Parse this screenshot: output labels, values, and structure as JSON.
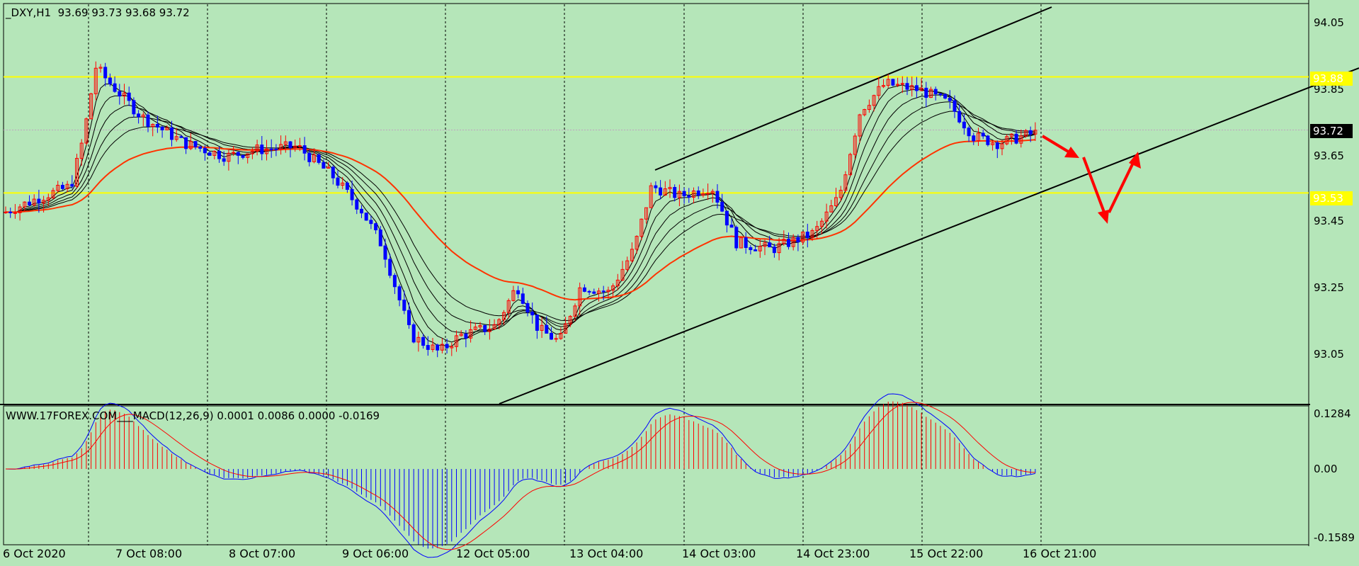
{
  "main_chart": {
    "symbol_info": "_DXY,H1",
    "ohlc": "93.69 93.73 93.68 93.72",
    "price_ticks": [
      "94.05",
      "93.85",
      "93.65",
      "93.45",
      "93.25",
      "93.05"
    ],
    "current_price": "93.72",
    "resistance_label": "93.88",
    "support_label": "93.53",
    "colors": {
      "background": "#b5e6b9",
      "level_line": "#ffff00",
      "bull_candle": "#ff0000",
      "bear_candle": "#0000ff",
      "slow_ma": "#ff3300",
      "channel": "#000000",
      "arrow": "#ff0000"
    }
  },
  "macd_panel": {
    "label": "WWW.17FOREX.COM___MACD(12,26,9) 0.0001 0.0086 0.0000 -0.0169",
    "ticks": [
      "0.1284",
      "0.00",
      "-0.1589"
    ]
  },
  "time_axis": [
    "6 Oct 2020",
    "7 Oct 08:00",
    "8 Oct 07:00",
    "9 Oct 06:00",
    "12 Oct 05:00",
    "13 Oct 04:00",
    "14 Oct 03:00",
    "14 Oct 23:00",
    "15 Oct 22:00",
    "16 Oct 21:00"
  ]
}
